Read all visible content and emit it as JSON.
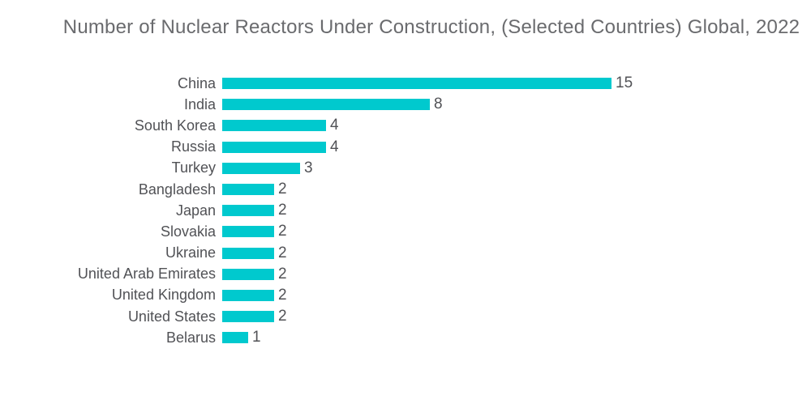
{
  "chart_data": {
    "type": "bar",
    "orientation": "horizontal",
    "title": "Number of Nuclear Reactors Under Construction, (Selected Countries) Global, 2022",
    "categories": [
      "China",
      "India",
      "South Korea",
      "Russia",
      "Turkey",
      "Bangladesh",
      "Japan",
      "Slovakia",
      "Ukraine",
      "United Arab Emirates",
      "United Kingdom",
      "United States",
      "Belarus"
    ],
    "values": [
      15,
      8,
      4,
      4,
      3,
      2,
      2,
      2,
      2,
      2,
      2,
      2,
      1
    ],
    "xlabel": "",
    "ylabel": "",
    "xlim": [
      0,
      16
    ],
    "grid": false,
    "legend_position": "none",
    "value_labels_shown": true,
    "bar_color": "#00C9CE"
  },
  "colors": {
    "background": "#FFFFFF",
    "title_text": "#6A6B6E",
    "axis_text": "#515256"
  }
}
